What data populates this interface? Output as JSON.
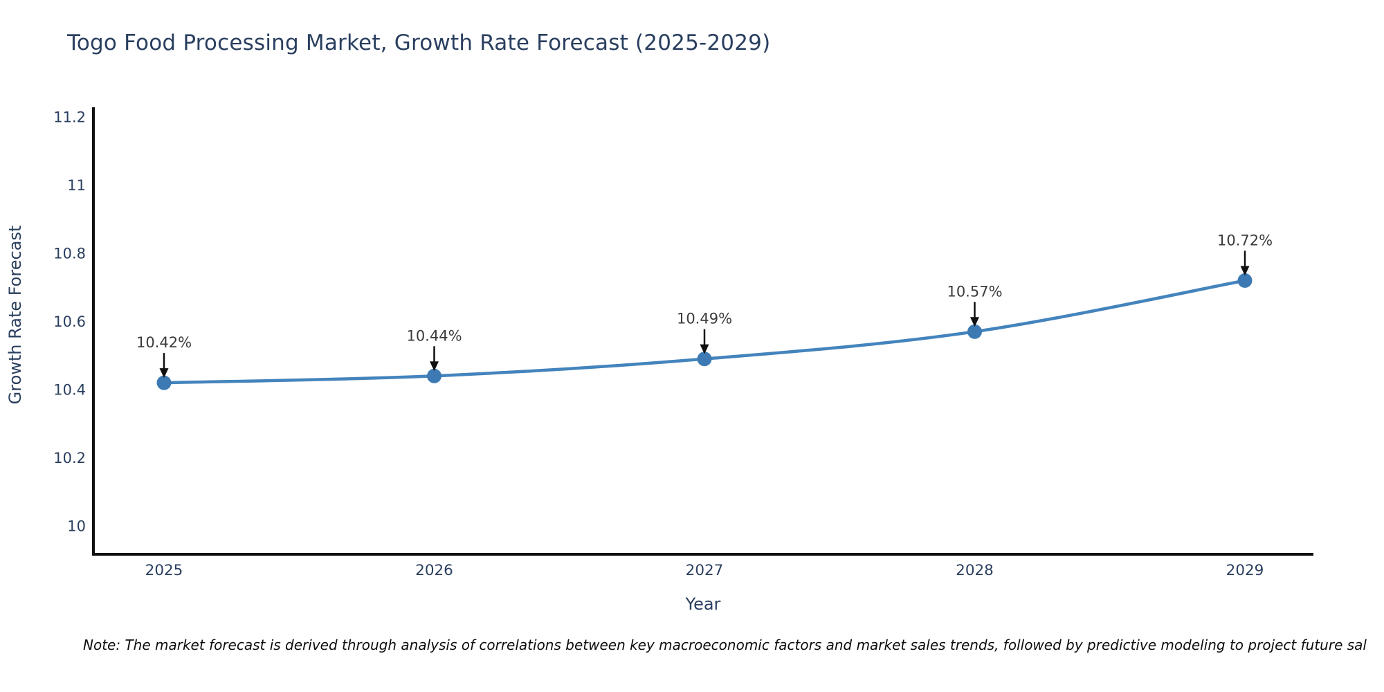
{
  "title": "Togo Food Processing Market, Growth Rate Forecast (2025-2029)",
  "note": "Note: The market forecast is derived through analysis of correlations between key macroeconomic factors and market sales trends, followed by predictive modeling to project future sal",
  "chart_data": {
    "type": "line",
    "x": [
      "2025",
      "2026",
      "2027",
      "2028",
      "2029"
    ],
    "series": [
      {
        "name": "Growth Rate Forecast",
        "values": [
          10.42,
          10.44,
          10.49,
          10.57,
          10.72
        ]
      }
    ],
    "point_labels": [
      "10.42%",
      "10.44%",
      "10.49%",
      "10.57%",
      "10.72%"
    ],
    "title": "Togo Food Processing Market, Growth Rate Forecast (2025-2029)",
    "xlabel": "Year",
    "ylabel": "Growth Rate Forecast",
    "ytick_values": [
      11.2,
      11.0,
      10.8,
      10.6,
      10.4,
      10.2,
      10.0
    ],
    "ytick_labels": [
      "11.2",
      "11",
      "10.8",
      "10.6",
      "10.4",
      "10.2",
      "10"
    ],
    "ylim": [
      9.92,
      11.23
    ],
    "grid": false,
    "legend": "none",
    "annotations_have_arrows": true,
    "colors": {
      "line": "#4484bd",
      "marker": "#3d7ab4",
      "axis": "#101010",
      "text": "#2a3f5f",
      "annotation_text": "#3b3b3b",
      "annotation_arrow": "#101010",
      "note_text": "#0d0d0d"
    }
  }
}
